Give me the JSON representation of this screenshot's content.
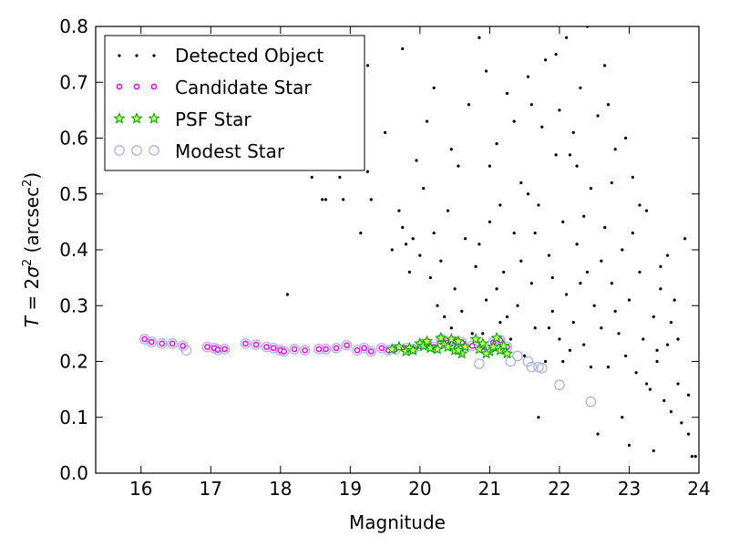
{
  "chart_data": {
    "type": "scatter",
    "xlabel": "Magnitude",
    "ylabel": "T = 2σ² (arcsec²)",
    "xlim": [
      15.35,
      24.0
    ],
    "ylim": [
      0.0,
      0.8
    ],
    "xticks": [
      "16",
      "17",
      "18",
      "19",
      "20",
      "21",
      "22",
      "23",
      "24"
    ],
    "yticks": [
      "0.0",
      "0.1",
      "0.2",
      "0.3",
      "0.4",
      "0.5",
      "0.6",
      "0.7",
      "0.8"
    ],
    "grid": false,
    "legend_position": "top-left",
    "series": [
      {
        "name": "Detected Object",
        "marker": "dot",
        "color": "#000000",
        "points": [
          [
            18.1,
            0.32
          ],
          [
            18.45,
            0.53
          ],
          [
            18.55,
            0.55
          ],
          [
            18.6,
            0.49
          ],
          [
            18.65,
            0.49
          ],
          [
            18.85,
            0.53
          ],
          [
            18.9,
            0.49
          ],
          [
            19.05,
            0.58
          ],
          [
            19.15,
            0.43
          ],
          [
            19.25,
            0.54
          ],
          [
            19.3,
            0.49
          ],
          [
            19.5,
            0.61
          ],
          [
            19.6,
            0.4
          ],
          [
            19.7,
            0.47
          ],
          [
            19.75,
            0.44
          ],
          [
            19.8,
            0.41
          ],
          [
            19.85,
            0.36
          ],
          [
            19.9,
            0.42
          ],
          [
            19.95,
            0.56
          ],
          [
            20.0,
            0.39
          ],
          [
            20.05,
            0.51
          ],
          [
            20.1,
            0.63
          ],
          [
            20.15,
            0.35
          ],
          [
            20.2,
            0.43
          ],
          [
            20.25,
            0.3
          ],
          [
            20.3,
            0.38
          ],
          [
            20.35,
            0.28
          ],
          [
            20.4,
            0.47
          ],
          [
            20.45,
            0.26
          ],
          [
            20.5,
            0.33
          ],
          [
            20.55,
            0.55
          ],
          [
            20.6,
            0.29
          ],
          [
            20.65,
            0.42
          ],
          [
            20.7,
            0.66
          ],
          [
            20.75,
            0.25
          ],
          [
            20.8,
            0.37
          ],
          [
            20.85,
            0.78
          ],
          [
            20.9,
            0.25
          ],
          [
            20.95,
            0.31
          ],
          [
            21.0,
            0.45
          ],
          [
            21.05,
            0.22
          ],
          [
            21.1,
            0.59
          ],
          [
            21.15,
            0.27
          ],
          [
            21.2,
            0.36
          ],
          [
            21.25,
            0.68
          ],
          [
            21.3,
            0.24
          ],
          [
            21.35,
            0.43
          ],
          [
            21.4,
            0.3
          ],
          [
            21.45,
            0.52
          ],
          [
            21.5,
            0.21
          ],
          [
            21.55,
            0.71
          ],
          [
            21.6,
            0.34
          ],
          [
            21.65,
            0.26
          ],
          [
            21.7,
            0.48
          ],
          [
            21.75,
            0.62
          ],
          [
            21.8,
            0.2
          ],
          [
            21.85,
            0.39
          ],
          [
            21.9,
            0.29
          ],
          [
            21.95,
            0.75
          ],
          [
            22.0,
            0.24
          ],
          [
            22.05,
            0.45
          ],
          [
            22.1,
            0.32
          ],
          [
            22.15,
            0.57
          ],
          [
            22.2,
            0.27
          ],
          [
            22.25,
            0.41
          ],
          [
            22.3,
            0.69
          ],
          [
            22.35,
            0.23
          ],
          [
            22.4,
            0.36
          ],
          [
            22.45,
            0.51
          ],
          [
            22.5,
            0.3
          ],
          [
            22.55,
            0.64
          ],
          [
            22.6,
            0.26
          ],
          [
            22.65,
            0.44
          ],
          [
            22.7,
            0.19
          ],
          [
            22.75,
            0.34
          ],
          [
            22.8,
            0.58
          ],
          [
            22.85,
            0.25
          ],
          [
            22.9,
            0.4
          ],
          [
            22.95,
            0.21
          ],
          [
            23.0,
            0.31
          ],
          [
            23.05,
            0.53
          ],
          [
            23.1,
            0.18
          ],
          [
            23.15,
            0.36
          ],
          [
            23.2,
            0.24
          ],
          [
            23.25,
            0.47
          ],
          [
            23.3,
            0.15
          ],
          [
            23.35,
            0.28
          ],
          [
            23.4,
            0.2
          ],
          [
            23.45,
            0.37
          ],
          [
            23.5,
            0.13
          ],
          [
            23.55,
            0.23
          ],
          [
            23.6,
            0.11
          ],
          [
            23.65,
            0.31
          ],
          [
            23.7,
            0.16
          ],
          [
            23.75,
            0.09
          ],
          [
            23.8,
            0.42
          ],
          [
            23.85,
            0.07
          ],
          [
            23.9,
            0.03
          ],
          [
            22.1,
            0.78
          ],
          [
            22.4,
            0.8
          ],
          [
            21.8,
            0.74
          ],
          [
            22.7,
            0.66
          ],
          [
            21.35,
            0.63
          ],
          [
            22.95,
            0.6
          ],
          [
            20.95,
            0.72
          ],
          [
            21.55,
            0.5
          ],
          [
            22.25,
            0.55
          ],
          [
            23.15,
            0.48
          ],
          [
            21.65,
            0.43
          ],
          [
            22.6,
            0.38
          ],
          [
            23.45,
            0.33
          ],
          [
            21.9,
            0.35
          ],
          [
            22.8,
            0.29
          ],
          [
            23.6,
            0.27
          ],
          [
            21.25,
            0.28
          ],
          [
            22.15,
            0.22
          ],
          [
            23.25,
            0.16
          ],
          [
            22.9,
            0.1
          ],
          [
            23.0,
            0.05
          ],
          [
            22.55,
            0.07
          ],
          [
            21.7,
            0.1
          ],
          [
            23.35,
            0.04
          ],
          [
            20.2,
            0.69
          ],
          [
            19.25,
            0.73
          ],
          [
            19.75,
            0.76
          ],
          [
            21.0,
            0.55
          ],
          [
            20.45,
            0.58
          ],
          [
            22.0,
            0.65
          ],
          [
            21.45,
            0.38
          ],
          [
            20.85,
            0.41
          ],
          [
            22.35,
            0.46
          ],
          [
            21.1,
            0.33
          ],
          [
            23.55,
            0.39
          ],
          [
            23.7,
            0.24
          ],
          [
            22.45,
            0.19
          ],
          [
            23.85,
            0.14
          ],
          [
            23.95,
            0.03
          ],
          [
            21.95,
            0.57
          ],
          [
            22.65,
            0.73
          ],
          [
            21.6,
            0.66
          ],
          [
            22.2,
            0.61
          ],
          [
            21.15,
            0.48
          ],
          [
            22.75,
            0.52
          ],
          [
            23.05,
            0.43
          ],
          [
            21.85,
            0.26
          ],
          [
            22.3,
            0.34
          ],
          [
            23.4,
            0.22
          ],
          [
            22.05,
            0.2
          ]
        ]
      },
      {
        "name": "Candidate Star",
        "marker": "small-circle",
        "color": "#ff00ff",
        "points": [
          [
            16.05,
            0.24
          ],
          [
            16.15,
            0.235
          ],
          [
            16.3,
            0.232
          ],
          [
            16.45,
            0.232
          ],
          [
            16.6,
            0.228
          ],
          [
            16.95,
            0.226
          ],
          [
            17.05,
            0.224
          ],
          [
            17.1,
            0.221
          ],
          [
            17.2,
            0.222
          ],
          [
            17.5,
            0.232
          ],
          [
            17.65,
            0.23
          ],
          [
            17.8,
            0.226
          ],
          [
            17.9,
            0.224
          ],
          [
            18.0,
            0.22
          ],
          [
            18.05,
            0.218
          ],
          [
            18.2,
            0.222
          ],
          [
            18.35,
            0.22
          ],
          [
            18.55,
            0.222
          ],
          [
            18.65,
            0.222
          ],
          [
            18.8,
            0.224
          ],
          [
            18.95,
            0.229
          ],
          [
            19.1,
            0.22
          ],
          [
            19.2,
            0.224
          ],
          [
            19.3,
            0.218
          ],
          [
            19.45,
            0.224
          ],
          [
            19.55,
            0.22
          ],
          [
            19.65,
            0.222
          ],
          [
            19.8,
            0.224
          ],
          [
            19.9,
            0.222
          ],
          [
            20.0,
            0.228
          ],
          [
            20.1,
            0.232
          ],
          [
            20.2,
            0.226
          ],
          [
            20.3,
            0.24
          ],
          [
            20.4,
            0.234
          ],
          [
            20.5,
            0.236
          ],
          [
            20.6,
            0.234
          ],
          [
            20.75,
            0.228
          ],
          [
            20.9,
            0.226
          ],
          [
            21.05,
            0.234
          ],
          [
            21.15,
            0.238
          ],
          [
            21.25,
            0.226
          ]
        ]
      },
      {
        "name": "PSF Star",
        "marker": "star",
        "color": "#00aa00",
        "points": [
          [
            19.6,
            0.222
          ],
          [
            19.7,
            0.226
          ],
          [
            19.8,
            0.218
          ],
          [
            19.85,
            0.224
          ],
          [
            19.9,
            0.22
          ],
          [
            20.0,
            0.232
          ],
          [
            20.05,
            0.228
          ],
          [
            20.1,
            0.236
          ],
          [
            20.15,
            0.224
          ],
          [
            20.25,
            0.222
          ],
          [
            20.3,
            0.242
          ],
          [
            20.35,
            0.23
          ],
          [
            20.4,
            0.226
          ],
          [
            20.45,
            0.24
          ],
          [
            20.5,
            0.22
          ],
          [
            20.55,
            0.236
          ],
          [
            20.6,
            0.214
          ],
          [
            20.65,
            0.226
          ],
          [
            20.8,
            0.24
          ],
          [
            20.85,
            0.222
          ],
          [
            20.9,
            0.232
          ],
          [
            21.0,
            0.218
          ],
          [
            21.05,
            0.226
          ],
          [
            21.1,
            0.242
          ],
          [
            21.15,
            0.22
          ],
          [
            21.2,
            0.228
          ],
          [
            21.25,
            0.214
          ],
          [
            20.55,
            0.22
          ],
          [
            20.95,
            0.214
          ]
        ]
      },
      {
        "name": "Modest Star",
        "marker": "open-circle",
        "color": "#b0b0ee",
        "points": [
          [
            16.05,
            0.24
          ],
          [
            16.15,
            0.235
          ],
          [
            16.3,
            0.232
          ],
          [
            16.45,
            0.232
          ],
          [
            16.6,
            0.228
          ],
          [
            16.65,
            0.22
          ],
          [
            16.95,
            0.226
          ],
          [
            17.05,
            0.224
          ],
          [
            17.1,
            0.221
          ],
          [
            17.2,
            0.222
          ],
          [
            17.5,
            0.232
          ],
          [
            17.65,
            0.23
          ],
          [
            17.8,
            0.226
          ],
          [
            17.9,
            0.224
          ],
          [
            18.0,
            0.22
          ],
          [
            18.05,
            0.218
          ],
          [
            18.2,
            0.222
          ],
          [
            18.35,
            0.22
          ],
          [
            18.55,
            0.222
          ],
          [
            18.65,
            0.222
          ],
          [
            18.8,
            0.224
          ],
          [
            18.95,
            0.229
          ],
          [
            19.1,
            0.22
          ],
          [
            19.2,
            0.224
          ],
          [
            19.3,
            0.218
          ],
          [
            19.45,
            0.224
          ],
          [
            19.55,
            0.22
          ],
          [
            19.65,
            0.222
          ],
          [
            19.8,
            0.224
          ],
          [
            19.9,
            0.222
          ],
          [
            20.0,
            0.228
          ],
          [
            20.1,
            0.232
          ],
          [
            20.2,
            0.226
          ],
          [
            20.3,
            0.24
          ],
          [
            20.4,
            0.234
          ],
          [
            20.5,
            0.236
          ],
          [
            20.6,
            0.234
          ],
          [
            20.75,
            0.228
          ],
          [
            20.9,
            0.226
          ],
          [
            21.05,
            0.234
          ],
          [
            21.15,
            0.238
          ],
          [
            21.25,
            0.226
          ],
          [
            20.85,
            0.196
          ],
          [
            21.3,
            0.2
          ],
          [
            21.4,
            0.21
          ],
          [
            21.55,
            0.2
          ],
          [
            21.6,
            0.19
          ],
          [
            21.7,
            0.19
          ],
          [
            21.75,
            0.188
          ],
          [
            22.0,
            0.158
          ],
          [
            22.45,
            0.128
          ]
        ]
      }
    ]
  }
}
